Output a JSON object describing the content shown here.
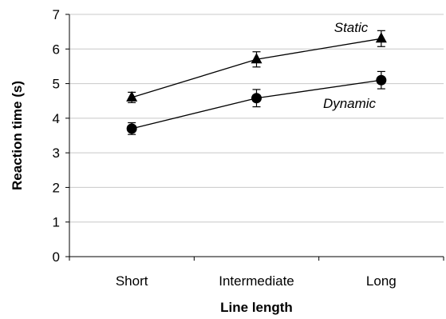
{
  "chart_data": {
    "type": "line",
    "title": "",
    "xlabel": "Line length",
    "ylabel": "Reaction time (s)",
    "categories": [
      "Short",
      "Intermediate",
      "Long"
    ],
    "ylim": [
      0,
      7
    ],
    "yticks": [
      "0",
      "1",
      "2",
      "3",
      "4",
      "5",
      "6",
      "7"
    ],
    "grid": true,
    "series": [
      {
        "name": "Static",
        "marker": "triangle",
        "values": [
          4.6,
          5.7,
          6.3
        ],
        "error": [
          0.15,
          0.22,
          0.23
        ]
      },
      {
        "name": "Dynamic",
        "marker": "circle",
        "values": [
          3.7,
          4.58,
          5.1
        ],
        "error": [
          0.17,
          0.25,
          0.25
        ]
      }
    ]
  }
}
